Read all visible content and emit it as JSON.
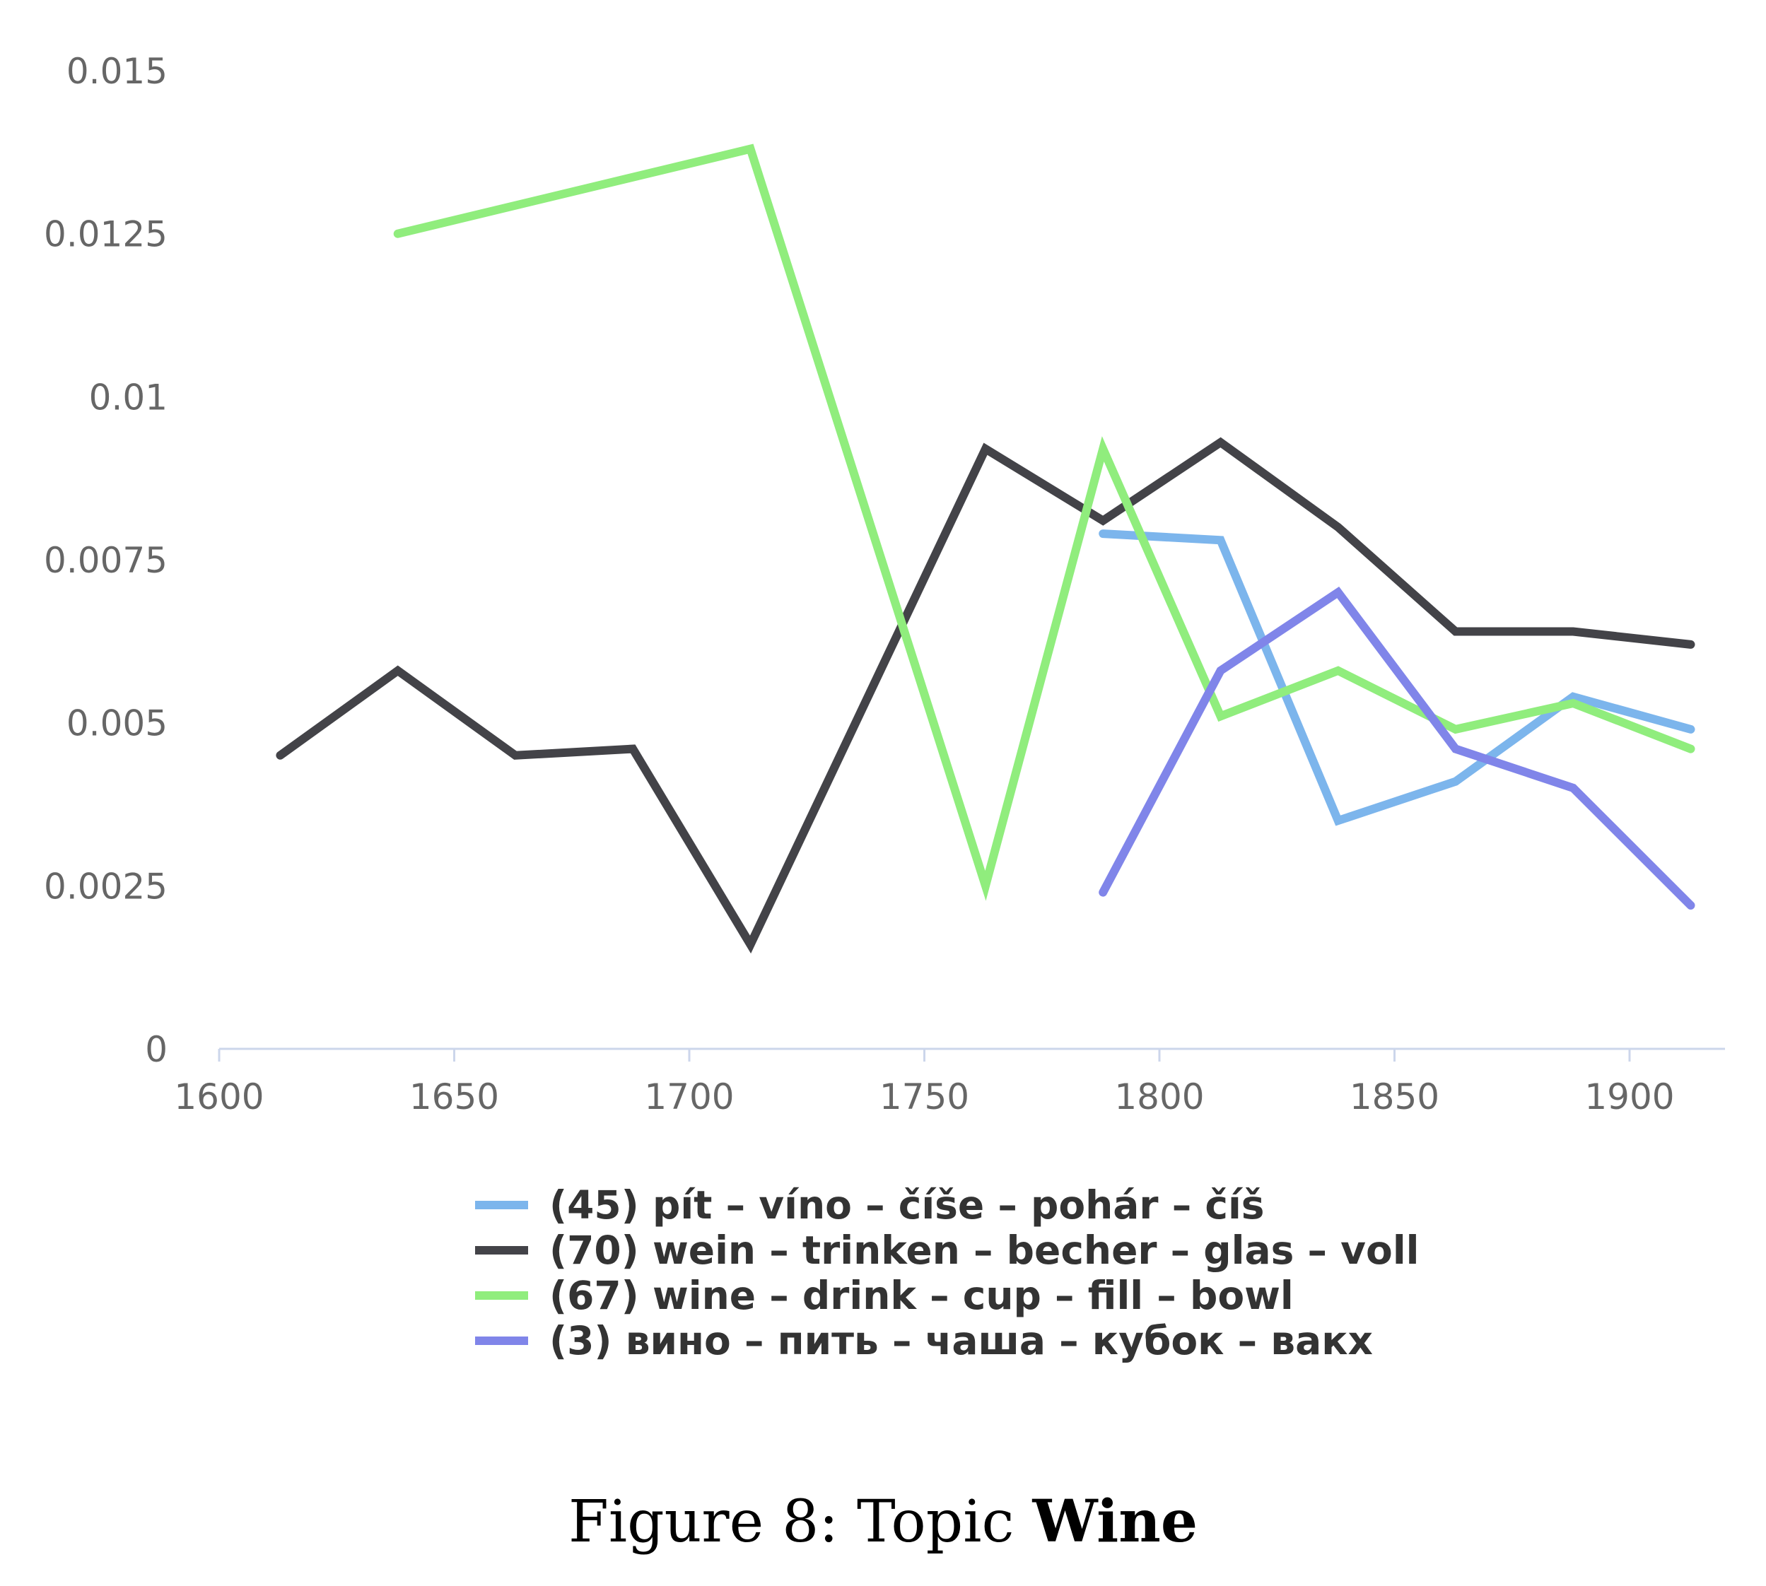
{
  "chart_data": {
    "type": "line",
    "title": "",
    "xlabel": "",
    "ylabel": "",
    "xlim": [
      1600,
      1920
    ],
    "ylim": [
      0,
      0.015
    ],
    "x_ticks": [
      1600,
      1650,
      1700,
      1750,
      1800,
      1850,
      1900
    ],
    "x_tick_labels": [
      "1600",
      "1650",
      "1700",
      "1750",
      "1800",
      "1850",
      "1900"
    ],
    "y_ticks": [
      0,
      0.0025,
      0.005,
      0.0075,
      0.01,
      0.0125,
      0.015
    ],
    "y_tick_labels": [
      "0",
      "0.0025",
      "0.005",
      "0.0075",
      "0.01",
      "0.0125",
      "0.015"
    ],
    "grid": false,
    "legend_position": "bottom-center",
    "series": [
      {
        "name": "(45) pít – víno – číše – pohár – číš",
        "color": "#7cb5ec",
        "points": [
          [
            1788,
            0.0079
          ],
          [
            1813,
            0.0078
          ],
          [
            1838,
            0.0035
          ],
          [
            1863,
            0.0041
          ],
          [
            1888,
            0.0054
          ],
          [
            1913,
            0.0049
          ]
        ]
      },
      {
        "name": "(70) wein – trinken – becher – glas – voll",
        "color": "#434348",
        "points": [
          [
            1613,
            0.0045
          ],
          [
            1638,
            0.0058
          ],
          [
            1663,
            0.0045
          ],
          [
            1688,
            0.0046
          ],
          [
            1713,
            0.0016
          ],
          [
            1763,
            0.0092
          ],
          [
            1788,
            0.0081
          ],
          [
            1813,
            0.0093
          ],
          [
            1838,
            0.008
          ],
          [
            1863,
            0.0064
          ],
          [
            1888,
            0.0064
          ],
          [
            1913,
            0.0062
          ]
        ]
      },
      {
        "name": "(67) wine – drink – cup – fill – bowl",
        "color": "#90ed7d",
        "points": [
          [
            1638,
            0.0125
          ],
          [
            1713,
            0.0138
          ],
          [
            1763,
            0.0025
          ],
          [
            1788,
            0.0092
          ],
          [
            1813,
            0.0051
          ],
          [
            1838,
            0.0058
          ],
          [
            1863,
            0.0049
          ],
          [
            1888,
            0.0053
          ],
          [
            1913,
            0.0046
          ]
        ]
      },
      {
        "name": "(3) вино – пить – чаша – кубок – вакх",
        "color": "#8085e9",
        "points": [
          [
            1788,
            0.0024
          ],
          [
            1813,
            0.0058
          ],
          [
            1838,
            0.007
          ],
          [
            1863,
            0.0046
          ],
          [
            1888,
            0.004
          ],
          [
            1913,
            0.0022
          ]
        ]
      }
    ]
  },
  "caption": {
    "prefix": "Figure 8: Topic ",
    "bold": "Wine"
  }
}
